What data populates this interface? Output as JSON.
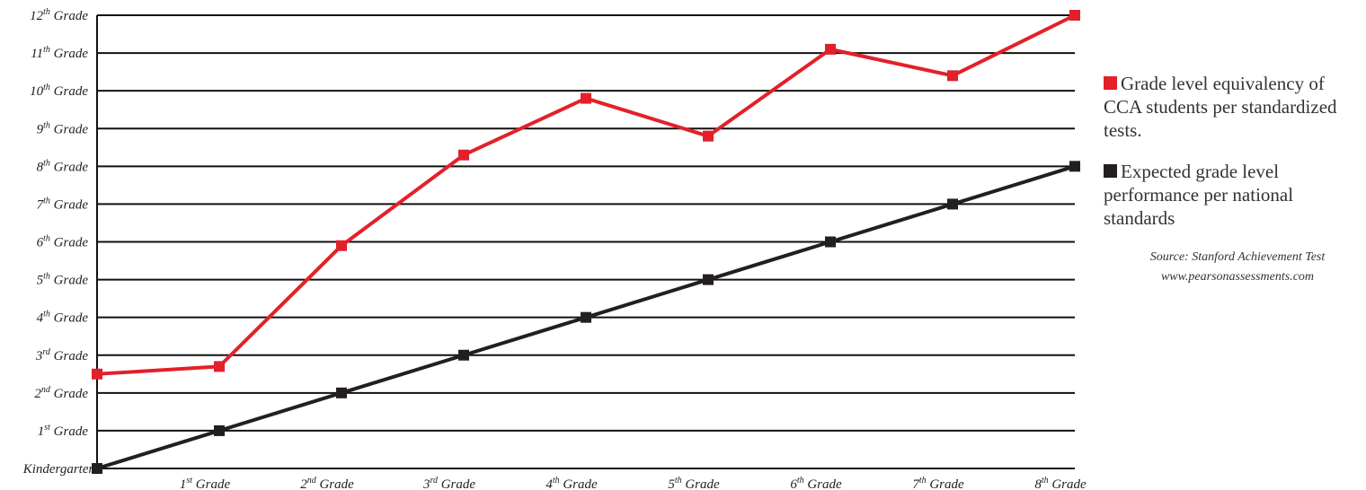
{
  "chart_data": {
    "type": "line",
    "categories": [
      "Kindergarten",
      "1st Grade",
      "2nd Grade",
      "3rd Grade",
      "4th Grade",
      "5th Grade",
      "6th Grade",
      "7th Grade",
      "8th Grade"
    ],
    "x_tick_labels": [
      {
        "base": "Kindergarten",
        "sup": ""
      },
      {
        "base": "1",
        "sup": "st",
        "rest": " Grade"
      },
      {
        "base": "2",
        "sup": "nd",
        "rest": " Grade"
      },
      {
        "base": "3",
        "sup": "rd",
        "rest": " Grade"
      },
      {
        "base": "4",
        "sup": "th",
        "rest": " Grade"
      },
      {
        "base": "5",
        "sup": "th",
        "rest": " Grade"
      },
      {
        "base": "6",
        "sup": "th",
        "rest": " Grade"
      },
      {
        "base": "7",
        "sup": "th",
        "rest": " Grade"
      },
      {
        "base": "8",
        "sup": "th",
        "rest": " Grade"
      }
    ],
    "y_tick_labels": [
      {
        "base": "1",
        "sup": "st",
        "rest": " Grade"
      },
      {
        "base": "2",
        "sup": "nd",
        "rest": " Grade"
      },
      {
        "base": "3",
        "sup": "rd",
        "rest": " Grade"
      },
      {
        "base": "4",
        "sup": "th",
        "rest": " Grade"
      },
      {
        "base": "5",
        "sup": "th",
        "rest": " Grade"
      },
      {
        "base": "6",
        "sup": "th",
        "rest": " Grade"
      },
      {
        "base": "7",
        "sup": "th",
        "rest": " Grade"
      },
      {
        "base": "8",
        "sup": "th",
        "rest": " Grade"
      },
      {
        "base": "9",
        "sup": "th",
        "rest": " Grade"
      },
      {
        "base": "10",
        "sup": "th",
        "rest": " Grade"
      },
      {
        "base": "11",
        "sup": "th",
        "rest": " Grade"
      },
      {
        "base": "12",
        "sup": "th",
        "rest": " Grade"
      }
    ],
    "ylim": [
      0,
      12
    ],
    "grid": true,
    "legend_position": "right",
    "series": [
      {
        "name": "Grade level equivalency of CCA students per standardized tests.",
        "color": "#e3202a",
        "values": [
          2.5,
          2.7,
          5.9,
          8.3,
          9.8,
          8.8,
          11.1,
          10.4,
          12.0
        ]
      },
      {
        "name": "Expected grade level performance per national standards",
        "color": "#231f20",
        "values": [
          0,
          1,
          2,
          3,
          4,
          5,
          6,
          7,
          8
        ]
      }
    ]
  },
  "legend": {
    "items": [
      {
        "label": "Grade level equivalency of CCA students per standardized tests.",
        "color": "#e3202a"
      },
      {
        "label": "Expected grade level performance per national standards",
        "color": "#231f20"
      }
    ],
    "source_line1": "Source: Stanford Achievement Test",
    "source_line2": "www.pearsonassessments.com"
  }
}
